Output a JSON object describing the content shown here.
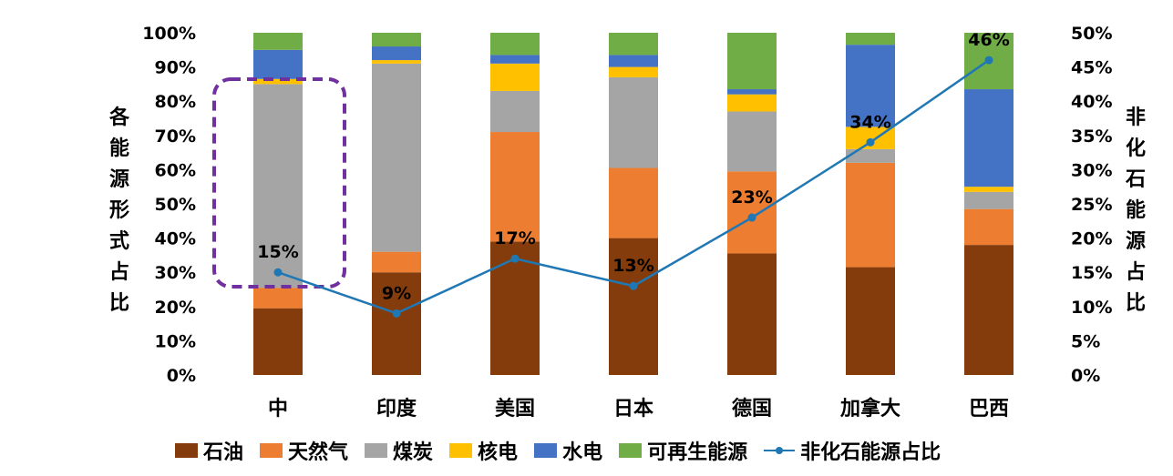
{
  "chart_data": {
    "type": "bar",
    "stacked": true,
    "categories": [
      "中",
      "印度",
      "美国",
      "日本",
      "德国",
      "加拿大",
      "巴西"
    ],
    "series": [
      {
        "name": "石油",
        "color": "#843C0C",
        "values": [
          19.5,
          30.0,
          39.0,
          40.0,
          35.5,
          31.5,
          38.0
        ]
      },
      {
        "name": "天然气",
        "color": "#ED7D31",
        "values": [
          6.0,
          6.0,
          32.0,
          20.5,
          24.0,
          30.5,
          10.5
        ]
      },
      {
        "name": "煤炭",
        "color": "#A5A5A5",
        "values": [
          59.5,
          55.0,
          12.0,
          26.5,
          17.5,
          4.0,
          5.0
        ]
      },
      {
        "name": "核电",
        "color": "#FFC000",
        "values": [
          1.5,
          1.0,
          8.0,
          3.0,
          5.0,
          6.5,
          1.5
        ]
      },
      {
        "name": "水电",
        "color": "#4472C4",
        "values": [
          8.5,
          4.0,
          2.5,
          3.5,
          1.5,
          24.0,
          28.5
        ]
      },
      {
        "name": "可再生能源",
        "color": "#70AD47",
        "values": [
          5.0,
          4.0,
          6.5,
          6.5,
          16.5,
          3.5,
          16.5
        ]
      }
    ],
    "line_series": {
      "name": "非化石能源占比",
      "color": "#1F77B4",
      "values": [
        15,
        9,
        17,
        13,
        23,
        34,
        46
      ],
      "labels": [
        "15%",
        "9%",
        "17%",
        "13%",
        "23%",
        "34%",
        "46%"
      ]
    },
    "y_left": {
      "label": "各能源形式占比",
      "ylim": [
        0,
        100
      ],
      "ticks": [
        "0%",
        "10%",
        "20%",
        "30%",
        "40%",
        "50%",
        "60%",
        "70%",
        "80%",
        "90%",
        "100%"
      ]
    },
    "y_right": {
      "label": "非化石能源占比",
      "ylim": [
        0,
        50
      ],
      "ticks": [
        "0%",
        "5%",
        "10%",
        "15%",
        "20%",
        "25%",
        "30%",
        "35%",
        "40%",
        "45%",
        "50%"
      ]
    },
    "grid": false,
    "legend_position": "bottom",
    "highlight_category": "中"
  }
}
